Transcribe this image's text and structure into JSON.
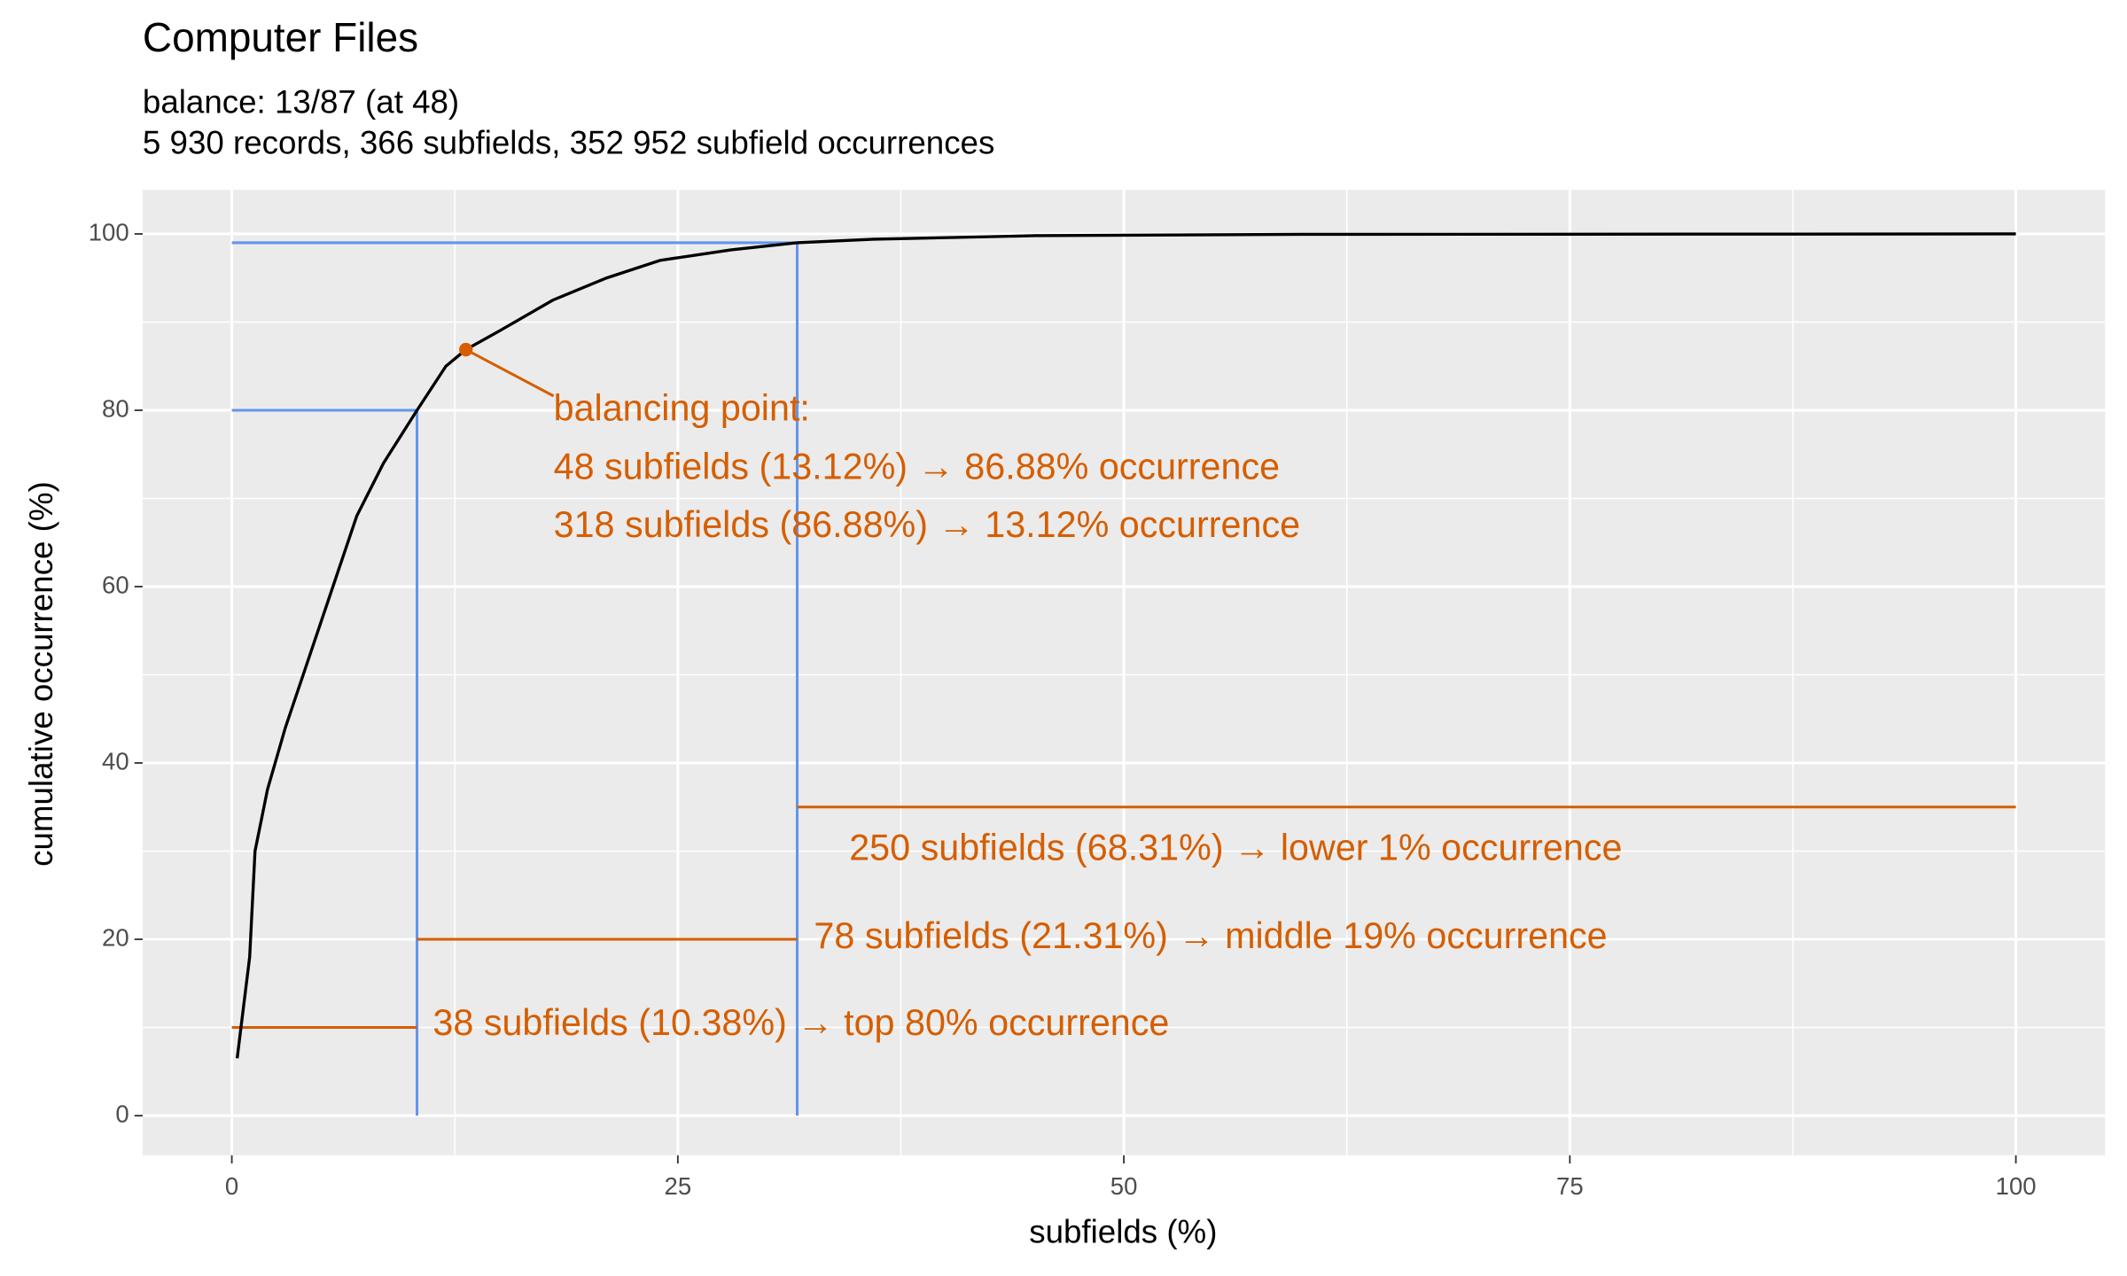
{
  "chart_data": {
    "type": "line",
    "title": "Computer Files",
    "subtitle": [
      "balance: 13/87 (at 48)",
      "5 930 records, 366 subfields, 352 952 subfield occurrences"
    ],
    "x_label": "subfields (%)",
    "y_label": "cumulative occurrence (%)",
    "x": [
      0.3,
      1,
      1.3,
      2,
      3,
      5,
      7,
      8.5,
      10.38,
      12,
      13.12,
      15,
      18,
      21,
      24,
      28,
      31.69,
      36,
      45,
      60,
      100
    ],
    "values": [
      6.5,
      18,
      30,
      37,
      44,
      56,
      68,
      74,
      80,
      85,
      86.88,
      89,
      92.5,
      95,
      97,
      98.2,
      99,
      99.4,
      99.8,
      99.95,
      100
    ],
    "color": "#000000",
    "xlim": [
      -5,
      105
    ],
    "ylim": [
      -4.5,
      105
    ],
    "xticks": [
      0,
      25,
      50,
      75,
      100
    ],
    "yticks": [
      0,
      20,
      40,
      60,
      80,
      100
    ],
    "x_minor_grid": [
      12.5,
      37.5,
      62.5,
      87.5
    ],
    "y_minor_grid": [
      10,
      30,
      50,
      70,
      90
    ],
    "grid": true,
    "reference_lines": [
      {
        "x": [
          0,
          31.69
        ],
        "y": [
          99,
          99
        ],
        "color": "#6495ed"
      },
      {
        "x": [
          31.69,
          31.69
        ],
        "y": [
          0,
          99
        ],
        "color": "#6495ed"
      },
      {
        "x": [
          0,
          10.38
        ],
        "y": [
          80,
          80
        ],
        "color": "#6495ed"
      },
      {
        "x": [
          10.38,
          10.38
        ],
        "y": [
          0,
          80
        ],
        "color": "#6495ed"
      },
      {
        "x": [
          0,
          10.38
        ],
        "y": [
          10,
          10
        ],
        "color": "#d55e00"
      },
      {
        "x": [
          10.38,
          31.69
        ],
        "y": [
          20,
          20
        ],
        "color": "#d55e00"
      },
      {
        "x": [
          31.69,
          100
        ],
        "y": [
          35,
          35
        ],
        "color": "#d55e00"
      }
    ],
    "balance_point": {
      "x": 13.12,
      "y": 86.88,
      "color": "#d55e00",
      "label": [
        "balancing point:",
        "48 subfields (13.12%) → 86.88% occurrence",
        "318 subfields (86.88%) → 13.12% occurrence"
      ]
    },
    "annotations": [
      "38 subfields (10.38%) → top 80% occurrence",
      "78 subfields (21.31%) → middle 19% occurrence",
      "250 subfields (68.31%) → lower 1% occurrence"
    ]
  }
}
